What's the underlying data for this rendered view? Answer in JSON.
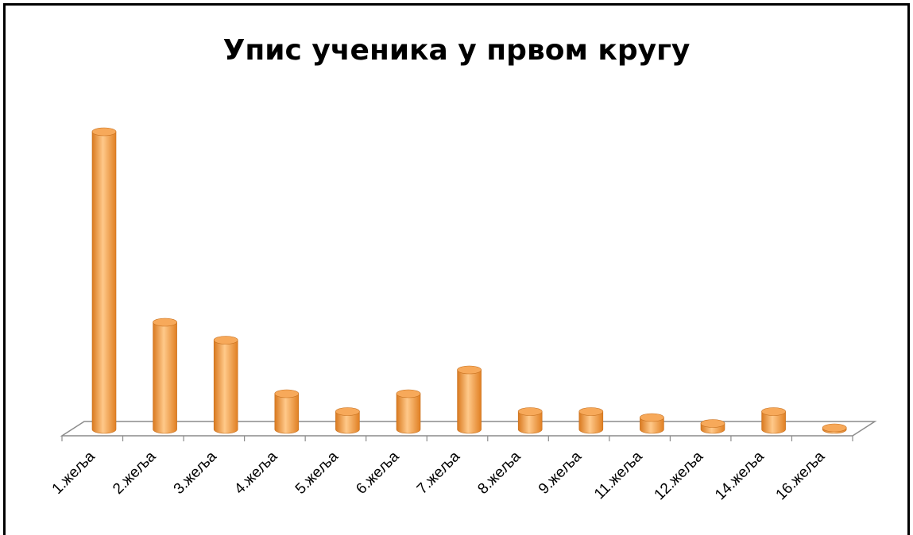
{
  "chart_data": {
    "type": "bar",
    "title": "Упис ученика у првом кругу",
    "categories": [
      "1.жеља",
      "2.жеља",
      "3.жеља",
      "4.жеља",
      "5.жеља",
      "6.жеља",
      "7.жеља",
      "8.жеља",
      "9.жеља",
      "11.жеља",
      "12.жеља",
      "14.жеља",
      "16.жеља"
    ],
    "values": [
      100,
      36,
      30,
      12,
      6,
      12,
      20,
      6,
      6,
      4,
      2,
      6,
      0.5
    ],
    "xlabel": "",
    "ylabel": "",
    "ylim": [
      0,
      100
    ],
    "grid": false,
    "legend": "none",
    "style": "3d-cylinder",
    "colors": {
      "bar": "#f29a45",
      "bar_light": "#ffd3a0",
      "bar_dark": "#c96a1c",
      "floor": "#8c8c8c"
    }
  }
}
